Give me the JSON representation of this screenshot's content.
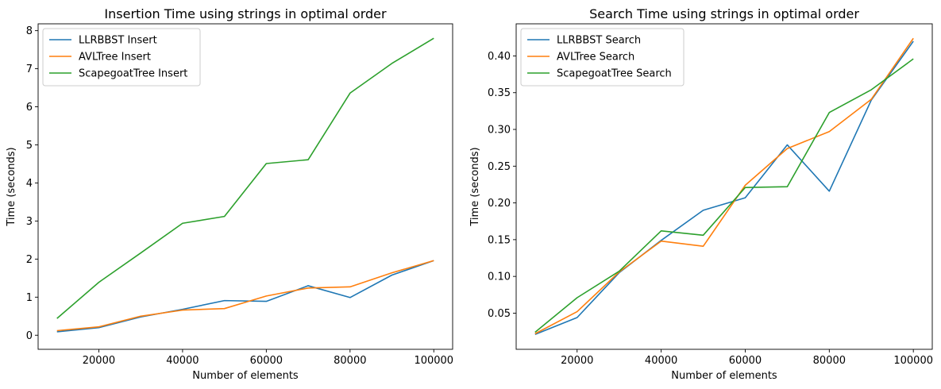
{
  "chart_data": [
    {
      "type": "line",
      "title": "Insertion Time using strings in optimal order",
      "xlabel": "Number of elements",
      "ylabel": "Time (seconds)",
      "x": [
        10000,
        20000,
        30000,
        40000,
        50000,
        60000,
        70000,
        80000,
        90000,
        100000
      ],
      "xlim": [
        5500,
        104500
      ],
      "ylim": [
        -0.37,
        8.18
      ],
      "xticks": [
        20000,
        40000,
        60000,
        80000,
        100000
      ],
      "xtick_labels": [
        "20000",
        "40000",
        "60000",
        "80000",
        "100000"
      ],
      "yticks": [
        0,
        1,
        2,
        3,
        4,
        5,
        6,
        7,
        8
      ],
      "ytick_labels": [
        "0",
        "1",
        "2",
        "3",
        "4",
        "5",
        "6",
        "7",
        "8"
      ],
      "grid": false,
      "legend_position": "top-left",
      "series": [
        {
          "name": "LLRBBST Insert",
          "color": "#1f77b4",
          "values": [
            0.09,
            0.2,
            0.48,
            0.68,
            0.91,
            0.89,
            1.3,
            0.99,
            1.58,
            1.96
          ]
        },
        {
          "name": "AVLTree Insert",
          "color": "#ff7f0e",
          "values": [
            0.12,
            0.22,
            0.5,
            0.66,
            0.7,
            1.03,
            1.24,
            1.27,
            1.64,
            1.96
          ]
        },
        {
          "name": "ScapegoatTree Insert",
          "color": "#2ca02c",
          "values": [
            0.44,
            1.39,
            2.16,
            2.94,
            3.12,
            4.51,
            4.61,
            6.36,
            7.14,
            7.8
          ]
        }
      ]
    },
    {
      "type": "line",
      "title": "Search Time using strings in optimal order",
      "xlabel": "Number of elements",
      "ylabel": "Time (seconds)",
      "x": [
        10000,
        20000,
        30000,
        40000,
        50000,
        60000,
        70000,
        80000,
        90000,
        100000
      ],
      "xlim": [
        5500,
        104500
      ],
      "ylim": [
        0.0008,
        0.4437
      ],
      "xticks": [
        20000,
        40000,
        60000,
        80000,
        100000
      ],
      "xtick_labels": [
        "20000",
        "40000",
        "60000",
        "80000",
        "100000"
      ],
      "yticks": [
        0.05,
        0.1,
        0.15,
        0.2,
        0.25,
        0.3,
        0.35,
        0.4
      ],
      "ytick_labels": [
        "0.05",
        "0.10",
        "0.15",
        "0.20",
        "0.25",
        "0.30",
        "0.35",
        "0.40"
      ],
      "grid": false,
      "legend_position": "top-left",
      "series": [
        {
          "name": "LLRBBST Search",
          "color": "#1f77b4",
          "values": [
            0.021,
            0.044,
            0.105,
            0.149,
            0.19,
            0.207,
            0.279,
            0.216,
            0.34,
            0.42
          ]
        },
        {
          "name": "AVLTree Search",
          "color": "#ff7f0e",
          "values": [
            0.022,
            0.052,
            0.106,
            0.148,
            0.141,
            0.224,
            0.274,
            0.297,
            0.341,
            0.424
          ]
        },
        {
          "name": "ScapegoatTree Search",
          "color": "#2ca02c",
          "values": [
            0.024,
            0.071,
            0.107,
            0.162,
            0.156,
            0.221,
            0.222,
            0.323,
            0.354,
            0.396
          ]
        }
      ]
    }
  ]
}
